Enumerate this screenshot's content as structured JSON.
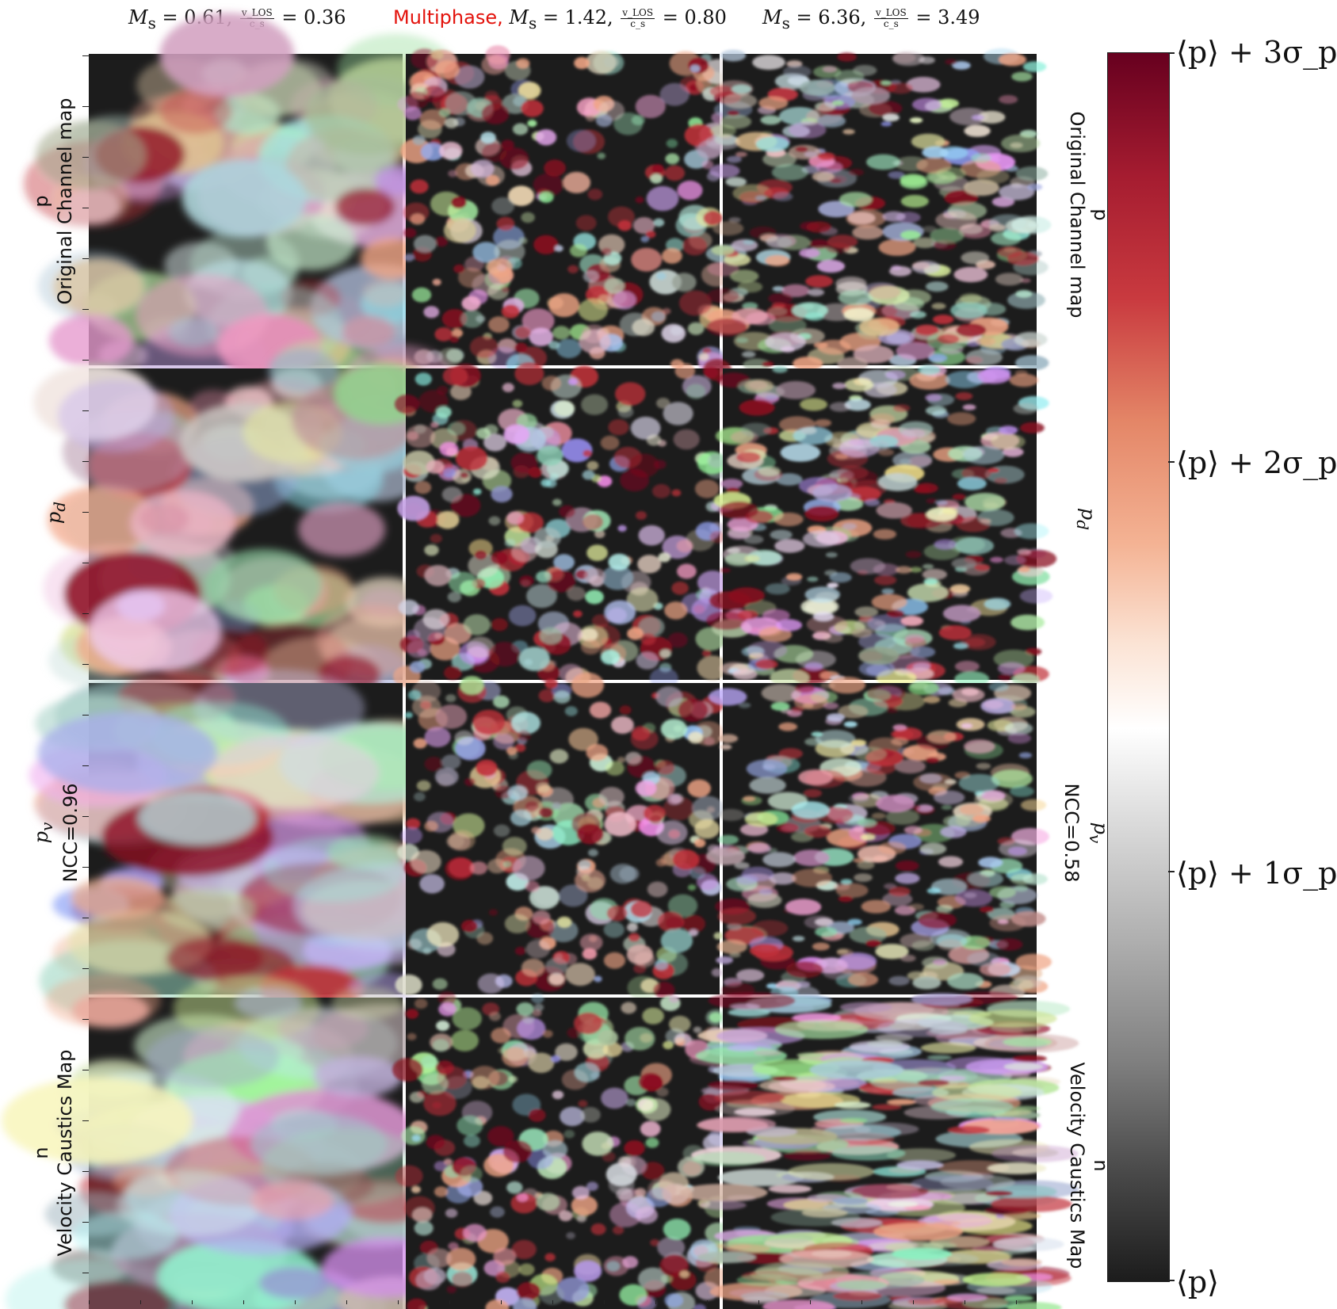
{
  "column_titles": [
    {
      "tag": "",
      "label": "M_s = 0.61, v_LOS/c_s = 0.36",
      "ms": "0.61",
      "ratio": "0.36"
    },
    {
      "tag": "Multiphase,",
      "label": "M_s = 1.42, v_LOS/c_s = 0.80",
      "ms": "1.42",
      "ratio": "0.80"
    },
    {
      "tag": "",
      "label": "M_s = 6.36, v_LOS/c_s = 3.49",
      "ms": "6.36",
      "ratio": "3.49"
    }
  ],
  "title_symbols": {
    "ms_sym": "M",
    "ms_sub": "s",
    "v_num": "v_LOS",
    "v_den": "c_s"
  },
  "row_labels_left": [
    {
      "line1": "p",
      "line2": "Original Channel map"
    },
    {
      "line1": "p",
      "sub": "d"
    },
    {
      "line1": "p",
      "sub": "v",
      "line2": "NCC=0.96"
    },
    {
      "line1": "n",
      "line2": "Velocity Caustics Map"
    }
  ],
  "row_labels_right": [
    {
      "line1": "p",
      "line2": "Original Channel map"
    },
    {
      "line1": "p",
      "sub": "d"
    },
    {
      "line1": "p",
      "sub": "v",
      "line2": "NCC=0.58"
    },
    {
      "line1": "n",
      "line2": "Velocity Caustics Map"
    }
  ],
  "colorbar": {
    "labels": [
      "⟨p⟩ + 3σ_p",
      "⟨p⟩ + 2σ_p",
      "⟨p⟩ + 1σ_p",
      "⟨p⟩"
    ],
    "levels_sigma": [
      3,
      2,
      1,
      0
    ],
    "colors": {
      "low": "#1c1c1c",
      "mid": "#ffffff",
      "high": "#67001f"
    }
  }
}
